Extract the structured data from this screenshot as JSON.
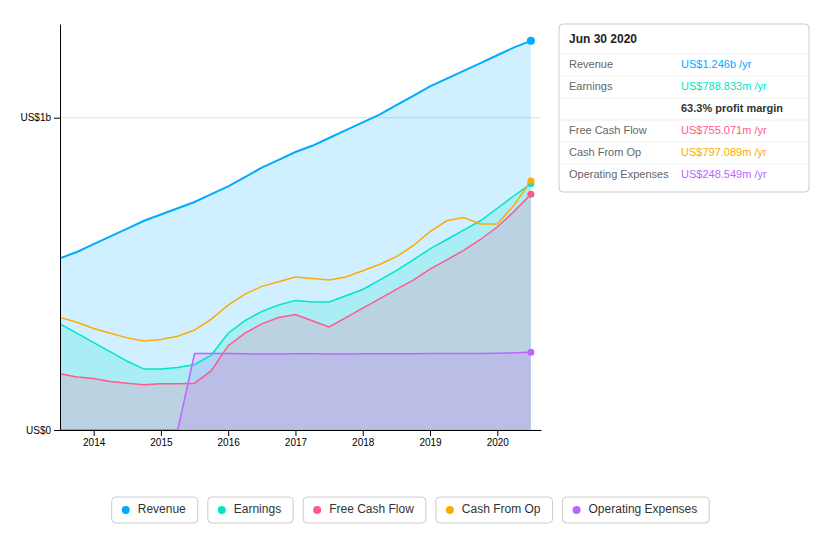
{
  "chart_data": {
    "type": "area",
    "x": [
      2013.5,
      2013.75,
      2014.0,
      2014.25,
      2014.5,
      2014.75,
      2015.0,
      2015.25,
      2015.5,
      2015.75,
      2016.0,
      2016.25,
      2016.5,
      2016.75,
      2017.0,
      2017.25,
      2017.5,
      2017.75,
      2018.0,
      2018.25,
      2018.5,
      2018.75,
      2019.0,
      2019.25,
      2019.5,
      2019.75,
      2020.0,
      2020.25,
      2020.5
    ],
    "xlim": [
      2013.5,
      2020.65
    ],
    "xticks": [
      2014,
      2015,
      2016,
      2017,
      2018,
      2019,
      2020
    ],
    "ylim": [
      0,
      1.3
    ],
    "yticks": [
      {
        "value": 0,
        "label": "US$0"
      },
      {
        "value": 1,
        "label": "US$1b"
      }
    ],
    "grid": true,
    "legend": "bottom",
    "series": [
      {
        "name": "Revenue",
        "color": "#00aaff",
        "type": "area",
        "values": [
          0.55,
          0.57,
          0.595,
          0.62,
          0.645,
          0.67,
          0.69,
          0.71,
          0.73,
          0.755,
          0.78,
          0.81,
          0.84,
          0.865,
          0.89,
          0.91,
          0.935,
          0.96,
          0.985,
          1.01,
          1.04,
          1.07,
          1.1,
          1.125,
          1.15,
          1.175,
          1.2,
          1.225,
          1.246
        ]
      },
      {
        "name": "Earnings",
        "color": "#00e5c8",
        "type": "area",
        "values": [
          0.34,
          0.31,
          0.28,
          0.25,
          0.22,
          0.195,
          0.195,
          0.2,
          0.21,
          0.24,
          0.31,
          0.35,
          0.38,
          0.4,
          0.415,
          0.41,
          0.41,
          0.43,
          0.45,
          0.48,
          0.51,
          0.545,
          0.58,
          0.61,
          0.64,
          0.67,
          0.71,
          0.75,
          0.789
        ]
      },
      {
        "name": "Free Cash Flow",
        "color": "#ff5a8a",
        "type": "area",
        "values": [
          0.18,
          0.17,
          0.165,
          0.155,
          0.15,
          0.145,
          0.148,
          0.148,
          0.15,
          0.19,
          0.27,
          0.31,
          0.34,
          0.36,
          0.37,
          0.35,
          0.33,
          0.36,
          0.39,
          0.42,
          0.45,
          0.48,
          0.515,
          0.545,
          0.575,
          0.61,
          0.65,
          0.7,
          0.755
        ]
      },
      {
        "name": "Cash From Op",
        "color": "#ffaa00",
        "type": "line",
        "values": [
          0.36,
          0.345,
          0.325,
          0.31,
          0.295,
          0.285,
          0.29,
          0.3,
          0.32,
          0.355,
          0.4,
          0.435,
          0.46,
          0.475,
          0.49,
          0.485,
          0.48,
          0.49,
          0.51,
          0.53,
          0.555,
          0.59,
          0.635,
          0.67,
          0.68,
          0.66,
          0.66,
          0.72,
          0.797
        ]
      },
      {
        "name": "Operating Expenses",
        "color": "#bb66ff",
        "type": "area",
        "values": [
          0.0,
          0.0,
          0.0,
          0.0,
          0.0,
          0.0,
          0.0,
          0.0,
          0.245,
          0.245,
          0.245,
          0.244,
          0.243,
          0.243,
          0.244,
          0.244,
          0.243,
          0.243,
          0.244,
          0.244,
          0.244,
          0.244,
          0.245,
          0.245,
          0.245,
          0.245,
          0.246,
          0.247,
          0.249
        ]
      }
    ],
    "tooltip": {
      "title": "Jun 30 2020",
      "rows": [
        {
          "label": "Revenue",
          "value": "US$1.246b /yr",
          "color": "#00aaff"
        },
        {
          "label": "Earnings",
          "value": "US$788.833m /yr",
          "color": "#00e5c8"
        },
        {
          "value": "63.3% profit margin"
        },
        {
          "label": "Free Cash Flow",
          "value": "US$755.071m /yr",
          "color": "#ff5a8a"
        },
        {
          "label": "Cash From Op",
          "value": "US$797.089m /yr",
          "color": "#ffaa00"
        },
        {
          "label": "Operating Expenses",
          "value": "US$248.549m /yr",
          "color": "#bb66ff"
        }
      ]
    }
  }
}
